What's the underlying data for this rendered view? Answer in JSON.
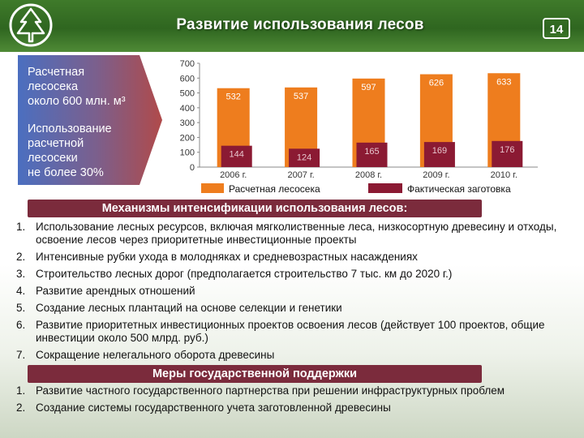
{
  "header": {
    "title": "Развитие использования лесов",
    "page_number": "14"
  },
  "sidebar": {
    "block1": [
      "Расчетная",
      "лесосека",
      "около 600 млн. м³"
    ],
    "block2": [
      "Использование",
      "расчетной",
      "лесосеки",
      "не более 30%"
    ]
  },
  "chart_data": {
    "type": "bar",
    "categories": [
      "2006 г.",
      "2007 г.",
      "2008 г.",
      "2009 г.",
      "2010 г."
    ],
    "series": [
      {
        "name": "Расчетная лесосека",
        "values": [
          532,
          537,
          597,
          626,
          633
        ]
      },
      {
        "name": "Фактическая заготовка",
        "values": [
          144,
          124,
          165,
          169,
          176
        ]
      }
    ],
    "yticks": [
      0,
      100,
      200,
      300,
      400,
      500,
      600,
      700
    ],
    "ylim": [
      0,
      700
    ],
    "legend": "bottom",
    "colors": {
      "calc": "#ee7d1e",
      "actual": "#8b1a33"
    }
  },
  "section1": {
    "title": "Механизмы интенсификации использования лесов:",
    "items": [
      {
        "num": "1.",
        "text": "Использование лесных ресурсов, включая мягколиственные леса, низкосортную древесину и отходы, освоение лесов через приоритетные инвестиционные проекты"
      },
      {
        "num": "2.",
        "text": "Интенсивные рубки ухода в молодняках и средневозрастных насаждениях"
      },
      {
        "num": "3.",
        "text": "Строительство лесных дорог (предполагается строительство 7 тыс. км до 2020 г.)"
      },
      {
        "num": "4.",
        "text": "Развитие арендных отношений"
      },
      {
        "num": "5.",
        "text": "Создание лесных плантаций на основе селекции и генетики"
      },
      {
        "num": "6.",
        "text": "Развитие приоритетных инвестиционных проектов освоения лесов (действует 100 проектов, общие инвестиции около 500 млрд. руб.)"
      },
      {
        "num": "7.",
        "text": "Сокращение нелегального оборота древесины"
      }
    ]
  },
  "section2": {
    "title": "Меры государственной поддержки",
    "items": [
      {
        "num": "1.",
        "text": "Развитие частного государственного партнерства при решении инфраструктурных проблем"
      },
      {
        "num": "2.",
        "text": "Создание системы государственного учета заготовленной древесины"
      }
    ]
  }
}
